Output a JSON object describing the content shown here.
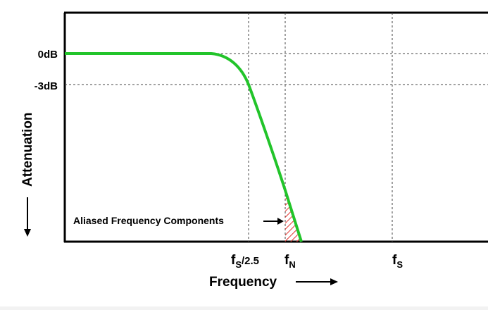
{
  "chart_data": {
    "type": "line",
    "title": "",
    "xlabel": "Frequency",
    "ylabel": "Attenuation",
    "x_markers": [
      {
        "label_main": "f",
        "label_sub": "S",
        "label_suffix": "/2.5"
      },
      {
        "label_main": "f",
        "label_sub": "N",
        "label_suffix": ""
      },
      {
        "label_main": "f",
        "label_sub": "S",
        "label_suffix": ""
      }
    ],
    "y_ticks": [
      "0dB",
      "-3dB"
    ],
    "annotation": "Aliased Frequency Components",
    "series": [
      {
        "color": "#22c42a"
      }
    ],
    "grid": "dashed reference lines at marked frequencies and levels",
    "colors": {
      "curve": "#22c42a",
      "hatch": "#e0302a",
      "axes": "#000000"
    }
  }
}
